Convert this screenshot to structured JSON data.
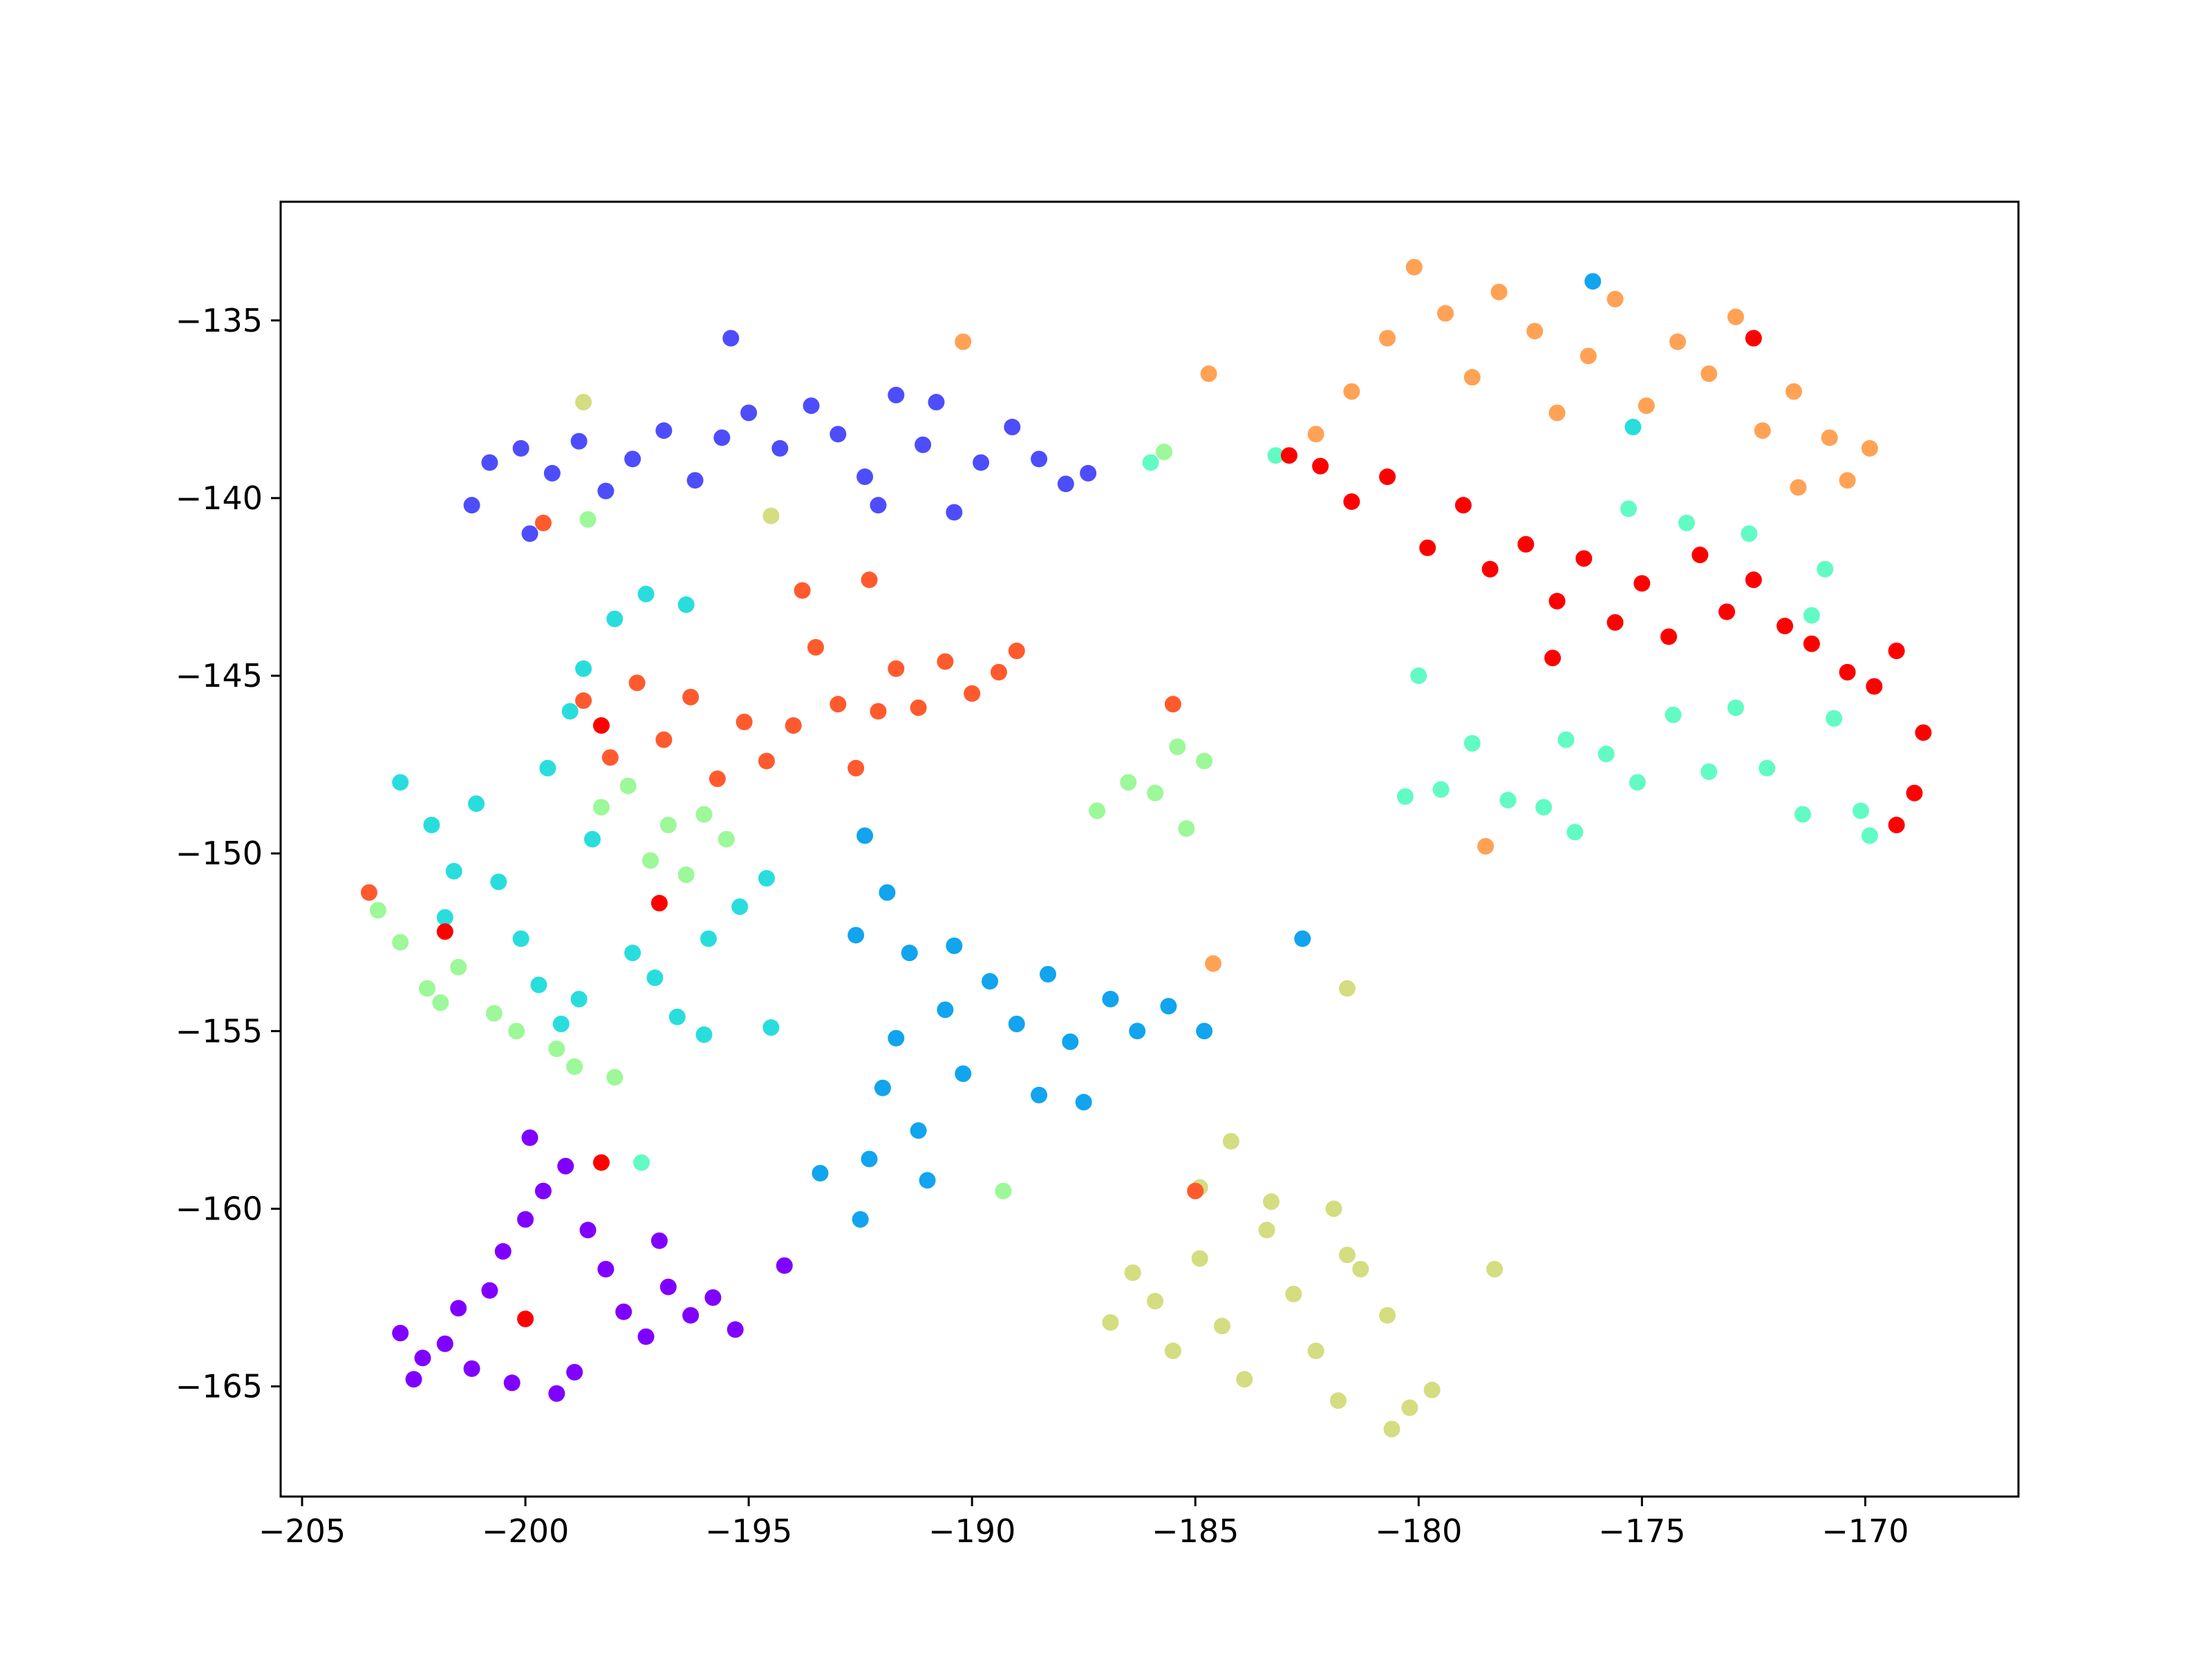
{
  "chart_data": {
    "type": "scatter",
    "xlim": [
      -205.48,
      -166.57
    ],
    "ylim": [
      -168.1,
      -131.66
    ],
    "xticks": [
      {
        "value": -205,
        "label": "−205"
      },
      {
        "value": -200,
        "label": "−200"
      },
      {
        "value": -195,
        "label": "−195"
      },
      {
        "value": -190,
        "label": "−190"
      },
      {
        "value": -185,
        "label": "−185"
      },
      {
        "value": -180,
        "label": "−180"
      },
      {
        "value": -175,
        "label": "−175"
      },
      {
        "value": -170,
        "label": "−170"
      }
    ],
    "yticks": [
      {
        "value": -135,
        "label": "−135"
      },
      {
        "value": -140,
        "label": "−140"
      },
      {
        "value": -145,
        "label": "−145"
      },
      {
        "value": -150,
        "label": "−150"
      },
      {
        "value": -155,
        "label": "−155"
      },
      {
        "value": -160,
        "label": "−160"
      },
      {
        "value": -165,
        "label": "−165"
      }
    ],
    "series": [
      {
        "color": "#8000ff",
        "x": [
          -202.8,
          -202.3,
          -201.8,
          -201.2,
          -200.8,
          -200.5,
          -200.0,
          -199.6,
          -199.1,
          -198.6,
          -198.2,
          -197.8,
          -197.3,
          -196.8,
          -196.3,
          -195.8,
          -195.3,
          -199.3,
          -198.9,
          -200.3,
          -201.5,
          -197.0,
          -194.2,
          -199.9,
          -202.5
        ],
        "y": [
          -163.5,
          -164.2,
          -163.8,
          -164.5,
          -162.3,
          -161.2,
          -160.3,
          -159.5,
          -158.8,
          -160.6,
          -161.7,
          -162.9,
          -163.6,
          -162.2,
          -163.0,
          -162.5,
          -163.4,
          -165.2,
          -164.6,
          -164.9,
          -162.8,
          -160.9,
          -161.6,
          -158.0,
          -164.8
        ]
      },
      {
        "color": "#4d4dfc",
        "x": [
          -201.2,
          -200.8,
          -200.1,
          -199.4,
          -198.8,
          -198.2,
          -197.6,
          -196.9,
          -196.2,
          -195.6,
          -195.0,
          -194.3,
          -193.6,
          -193.0,
          -192.4,
          -191.7,
          -191.1,
          -190.4,
          -189.8,
          -189.1,
          -188.5,
          -187.9,
          -187.4,
          -195.4,
          -192.1,
          -190.8,
          -199.9
        ],
        "y": [
          -140.2,
          -139.0,
          -138.6,
          -139.3,
          -138.4,
          -139.8,
          -138.9,
          -138.1,
          -139.5,
          -138.3,
          -137.6,
          -138.6,
          -137.4,
          -138.2,
          -139.4,
          -137.1,
          -138.5,
          -140.4,
          -139.0,
          -138.0,
          -138.9,
          -139.6,
          -139.3,
          -135.5,
          -140.2,
          -137.3,
          -141.0
        ]
      },
      {
        "color": "#12a4ee",
        "x": [
          -192.4,
          -191.9,
          -192.6,
          -191.4,
          -190.4,
          -189.6,
          -190.6,
          -191.7,
          -192.0,
          -191.2,
          -192.3,
          -191.0,
          -190.2,
          -189.0,
          -188.3,
          -187.8,
          -186.9,
          -186.3,
          -185.6,
          -188.5,
          -187.5,
          -192.5,
          -193.4,
          -184.8,
          -182.6,
          -176.1
        ],
        "y": [
          -149.5,
          -151.1,
          -152.3,
          -152.8,
          -152.6,
          -153.6,
          -154.4,
          -155.2,
          -156.6,
          -157.8,
          -158.6,
          -159.2,
          -156.2,
          -154.8,
          -153.4,
          -155.3,
          -154.1,
          -155.0,
          -154.3,
          -156.8,
          -157.0,
          -160.3,
          -159.0,
          -155.0,
          -152.4,
          -133.9
        ]
      },
      {
        "color": "#2adddd",
        "x": [
          -202.8,
          -202.1,
          -201.6,
          -201.8,
          -201.1,
          -200.6,
          -200.1,
          -199.5,
          -199.0,
          -198.7,
          -198.5,
          -199.7,
          -198.8,
          -197.6,
          -197.1,
          -196.6,
          -195.9,
          -195.2,
          -194.6,
          -196.4,
          -197.3,
          -198.0,
          -196.0,
          -199.2,
          -194.5,
          -175.2
        ],
        "y": [
          -148.0,
          -149.2,
          -150.5,
          -151.8,
          -148.6,
          -150.8,
          -152.4,
          -147.6,
          -146.0,
          -144.8,
          -149.6,
          -153.7,
          -154.1,
          -152.8,
          -153.5,
          -154.6,
          -152.4,
          -151.5,
          -150.7,
          -143.0,
          -142.7,
          -143.4,
          -155.1,
          -154.8,
          -154.9,
          -138.0
        ]
      },
      {
        "color": "#62fbc4",
        "x": [
          -180.3,
          -179.5,
          -178.8,
          -178.0,
          -177.2,
          -176.7,
          -175.8,
          -175.1,
          -174.3,
          -173.5,
          -172.9,
          -172.2,
          -171.4,
          -170.7,
          -170.1,
          -169.9,
          -171.2,
          -170.9,
          -172.6,
          -174.0,
          -175.3,
          -180.0,
          -176.5,
          -186.0,
          -183.2,
          -197.4
        ],
        "y": [
          -148.4,
          -148.2,
          -146.9,
          -148.5,
          -148.7,
          -146.8,
          -147.2,
          -148.0,
          -146.1,
          -147.7,
          -145.9,
          -147.6,
          -148.9,
          -146.2,
          -148.8,
          -149.5,
          -143.3,
          -142.0,
          -141.0,
          -140.7,
          -140.3,
          -145.0,
          -149.4,
          -139.0,
          -138.8,
          -158.7
        ]
      },
      {
        "color": "#9cf898",
        "x": [
          -203.3,
          -202.8,
          -202.2,
          -201.5,
          -200.7,
          -200.2,
          -199.3,
          -198.9,
          -198.0,
          -201.9,
          -198.3,
          -197.7,
          -196.8,
          -196.0,
          -195.5,
          -197.2,
          -196.4,
          -185.4,
          -184.8,
          -185.9,
          -186.5,
          -185.2,
          -187.2,
          -189.3,
          -185.7,
          -198.6
        ],
        "y": [
          -151.6,
          -152.5,
          -153.8,
          -153.2,
          -154.5,
          -155.0,
          -155.5,
          -156.0,
          -156.3,
          -154.2,
          -148.7,
          -148.1,
          -149.2,
          -148.9,
          -149.6,
          -150.2,
          -150.6,
          -147.0,
          -147.4,
          -148.3,
          -148.0,
          -149.3,
          -148.8,
          -159.5,
          -138.7,
          -140.6
        ]
      },
      {
        "color": "#d4dd80",
        "x": [
          -186.9,
          -186.4,
          -185.9,
          -185.5,
          -184.9,
          -184.4,
          -183.9,
          -183.4,
          -182.8,
          -182.3,
          -181.8,
          -181.3,
          -180.7,
          -180.2,
          -179.7,
          -180.6,
          -181.9,
          -183.3,
          -184.9,
          -184.2,
          -181.6,
          -178.3,
          -181.6,
          -194.5,
          -198.7
        ],
        "y": [
          -163.2,
          -161.8,
          -162.6,
          -164.0,
          -161.4,
          -163.3,
          -164.8,
          -160.6,
          -162.4,
          -164.0,
          -165.4,
          -161.7,
          -163.0,
          -165.6,
          -165.1,
          -166.2,
          -160.0,
          -159.8,
          -159.4,
          -158.1,
          -161.3,
          -161.7,
          -153.8,
          -140.5,
          -137.3
        ]
      },
      {
        "color": "#ffa256",
        "x": [
          -182.3,
          -181.5,
          -180.7,
          -180.1,
          -179.4,
          -178.8,
          -178.2,
          -177.4,
          -176.9,
          -176.2,
          -175.6,
          -174.9,
          -174.2,
          -173.5,
          -172.9,
          -172.3,
          -171.6,
          -170.8,
          -170.4,
          -169.9,
          -171.5,
          -190.2,
          -184.7,
          -178.5,
          -184.6
        ],
        "y": [
          -138.2,
          -137.0,
          -135.5,
          -133.5,
          -134.8,
          -136.6,
          -134.2,
          -135.3,
          -137.6,
          -136.0,
          -134.4,
          -137.4,
          -135.6,
          -136.5,
          -134.9,
          -138.1,
          -137.0,
          -138.3,
          -139.5,
          -138.6,
          -139.7,
          -135.6,
          -136.5,
          -149.8,
          -153.1
        ]
      },
      {
        "color": "#ff5a2e",
        "x": [
          -198.7,
          -198.1,
          -197.5,
          -196.9,
          -196.3,
          -195.7,
          -195.1,
          -194.6,
          -194.0,
          -193.5,
          -193.0,
          -192.6,
          -192.1,
          -191.7,
          -191.2,
          -190.6,
          -190.0,
          -189.4,
          -189.0,
          -193.8,
          -192.3,
          -199.6,
          -185.0,
          -185.5,
          -203.5
        ],
        "y": [
          -145.7,
          -147.3,
          -145.2,
          -146.8,
          -145.6,
          -147.9,
          -146.3,
          -147.4,
          -146.4,
          -144.2,
          -145.8,
          -147.6,
          -146.0,
          -144.8,
          -145.9,
          -144.6,
          -145.5,
          -144.9,
          -144.3,
          -142.6,
          -142.3,
          -140.7,
          -159.5,
          -145.8,
          -151.1
        ]
      },
      {
        "color": "#ff0000",
        "x": [
          -182.9,
          -182.2,
          -181.5,
          -180.7,
          -179.8,
          -179.0,
          -178.4,
          -177.6,
          -176.9,
          -176.3,
          -175.6,
          -175.0,
          -174.4,
          -173.7,
          -173.1,
          -172.5,
          -171.8,
          -171.2,
          -170.4,
          -169.8,
          -169.3,
          -168.7,
          -168.9,
          -169.3,
          -172.5,
          -177.0,
          -198.3,
          -200.0,
          -197.0,
          -201.8,
          -198.3
        ],
        "y": [
          -138.8,
          -139.1,
          -140.1,
          -139.4,
          -141.4,
          -140.2,
          -142.0,
          -141.3,
          -142.9,
          -141.7,
          -143.5,
          -142.4,
          -143.9,
          -141.6,
          -143.2,
          -142.3,
          -143.6,
          -144.1,
          -144.9,
          -145.3,
          -144.3,
          -146.6,
          -148.3,
          -149.2,
          -135.5,
          -144.5,
          -158.7,
          -163.1,
          -151.4,
          -152.2,
          -146.4
        ]
      }
    ]
  }
}
